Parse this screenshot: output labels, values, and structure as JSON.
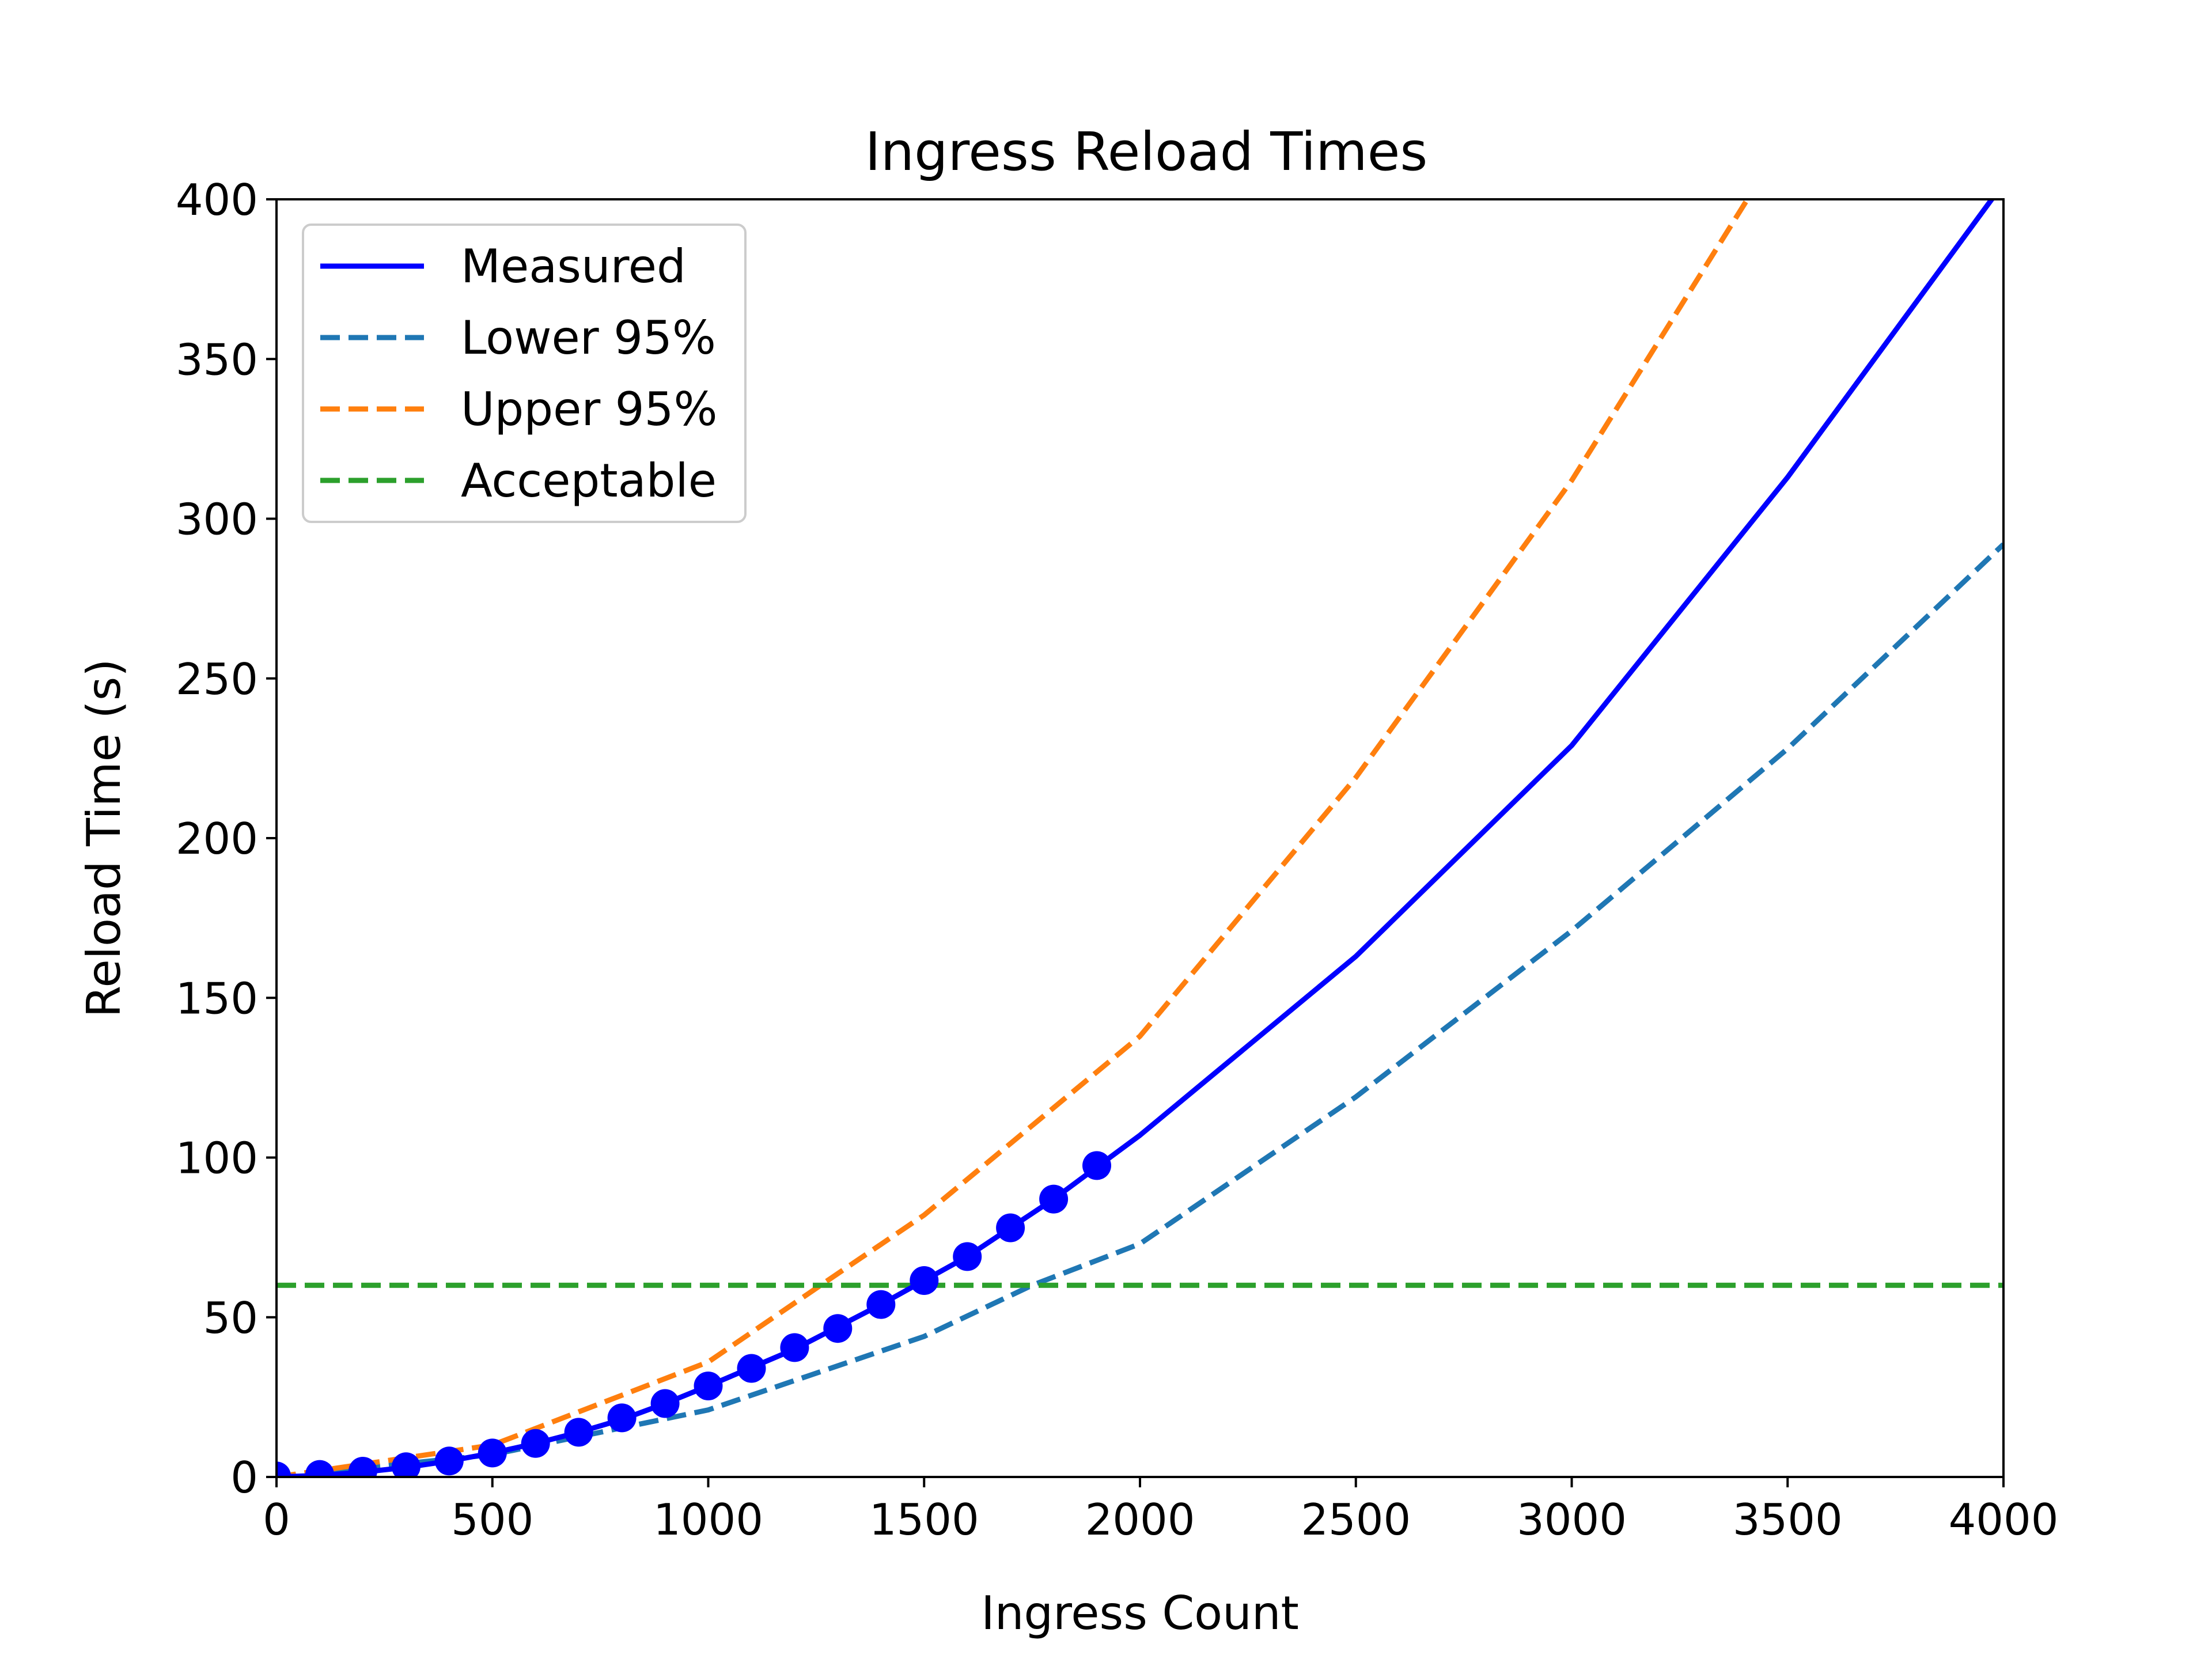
{
  "chart_data": {
    "type": "line",
    "title": "Ingress Reload Times",
    "xlabel": "Ingress Count",
    "ylabel": "Reload Time (s)",
    "xlim": [
      0,
      4000
    ],
    "ylim": [
      0,
      400
    ],
    "xticks": [
      0,
      500,
      1000,
      1500,
      2000,
      2500,
      3000,
      3500,
      4000
    ],
    "yticks": [
      0,
      50,
      100,
      150,
      200,
      250,
      300,
      350,
      400
    ],
    "grid": false,
    "legend_position": "upper-left",
    "series": [
      {
        "name": "Measured",
        "style": "solid",
        "color": "#0000ff",
        "x": [
          0,
          100,
          200,
          300,
          400,
          500,
          600,
          700,
          800,
          900,
          1000,
          1200,
          1400,
          1600,
          1800,
          1900,
          2000,
          2500,
          3000,
          3500,
          4000
        ],
        "y": [
          0,
          0.5,
          1.5,
          3,
          5,
          7.5,
          10.5,
          14,
          18,
          23,
          28.5,
          40,
          54,
          69,
          87,
          97,
          107,
          163,
          229,
          313,
          405
        ]
      },
      {
        "name": "Lower 95%",
        "style": "dashed",
        "color": "#1f77b4",
        "x": [
          0,
          500,
          1000,
          1500,
          1750,
          2000,
          2500,
          3000,
          3500,
          4000
        ],
        "y": [
          0,
          7,
          21,
          44,
          60,
          73,
          119,
          171,
          228,
          292
        ]
      },
      {
        "name": "Upper 95%",
        "style": "dashed",
        "color": "#ff7f0e",
        "x": [
          0,
          500,
          1000,
          1260,
          1500,
          2000,
          2500,
          3000,
          3430
        ],
        "y": [
          0,
          10,
          36,
          60,
          82,
          138,
          219,
          312,
          405
        ]
      },
      {
        "name": "Acceptable",
        "style": "dashed",
        "color": "#2ca02c",
        "x": [
          0,
          4000
        ],
        "y": [
          60,
          60
        ]
      }
    ],
    "markers": {
      "series": "Measured",
      "color": "#0000ff",
      "x": [
        0,
        100,
        200,
        300,
        400,
        500,
        600,
        700,
        800,
        900,
        1000,
        1100,
        1200,
        1300,
        1400,
        1500,
        1600,
        1700,
        1800,
        1900
      ],
      "y": [
        0.3,
        0.8,
        1.8,
        3.2,
        5,
        7.5,
        10.5,
        14,
        18.5,
        23,
        28.5,
        34,
        40.5,
        46.5,
        54,
        61.5,
        69,
        78,
        87,
        97.5
      ]
    }
  }
}
